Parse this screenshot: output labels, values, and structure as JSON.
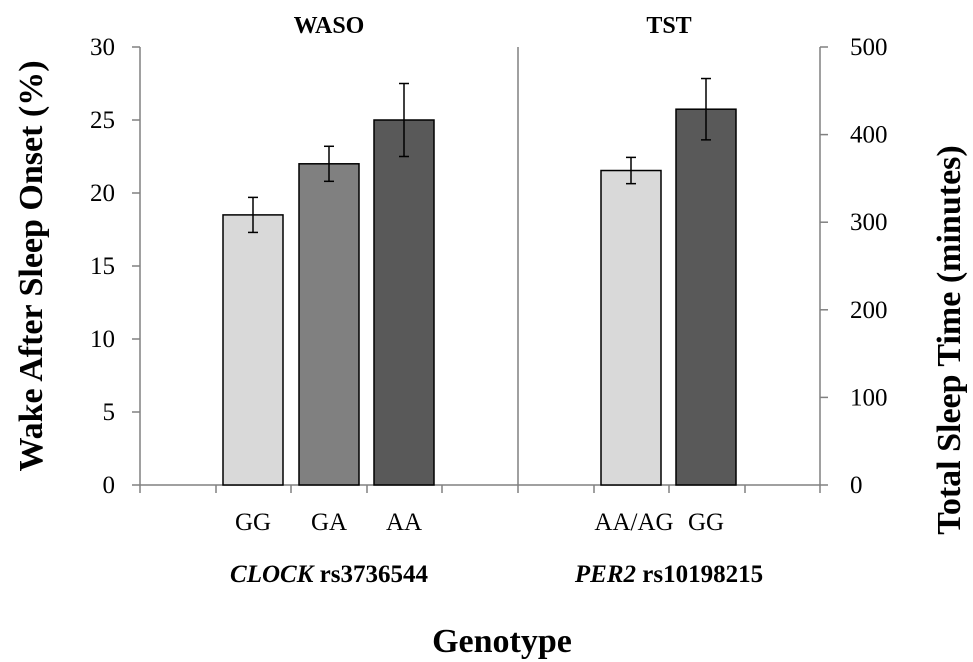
{
  "chart_data": {
    "type": "bar",
    "xlabel": "Genotype",
    "panels": [
      {
        "title": "WASO",
        "gene": "CLOCK",
        "snp": "rs3736544",
        "axis": "left",
        "ylabel": "Wake After Sleep Onset (%)",
        "ylim": [
          0,
          30
        ],
        "yticks": [
          0,
          5,
          10,
          15,
          20,
          25,
          30
        ],
        "categories": [
          "GG",
          "GA",
          "AA"
        ],
        "values": [
          18.5,
          22.0,
          25.0
        ],
        "errors": [
          1.2,
          1.2,
          2.5
        ],
        "colors": [
          "#d9d9d9",
          "#808080",
          "#595959"
        ]
      },
      {
        "title": "TST",
        "gene": "PER2",
        "snp": "rs10198215",
        "axis": "right",
        "ylabel": "Total Sleep Time  (minutes)",
        "ylim": [
          0,
          500
        ],
        "yticks": [
          0,
          100,
          200,
          300,
          400,
          500
        ],
        "categories": [
          "AA/AG",
          "GG"
        ],
        "values": [
          359,
          429
        ],
        "errors": [
          15,
          35
        ],
        "colors": [
          "#d9d9d9",
          "#595959"
        ]
      }
    ],
    "grid": false,
    "legend": "none"
  }
}
